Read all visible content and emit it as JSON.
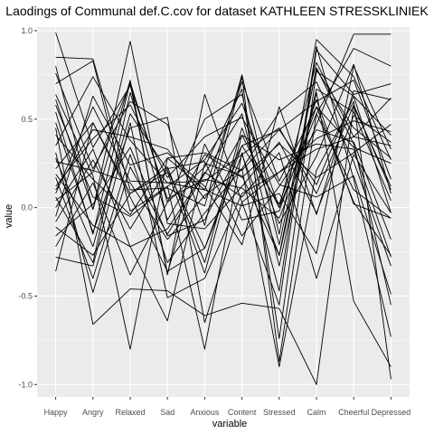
{
  "chart_data": {
    "type": "line",
    "title": "Laodings of Communal def.C.cov for dataset KATHLEEN STRESSKLINIEK",
    "xlabel": "variable",
    "ylabel": "value",
    "categories": [
      "Happy",
      "Angry",
      "Relaxed",
      "Sad",
      "Anxious",
      "Content",
      "Stressed",
      "Calm",
      "Cheerful",
      "Depressed"
    ],
    "ylim": [
      -1.07,
      1.02
    ],
    "yticks": [
      -1.0,
      -0.5,
      0.0,
      0.5,
      1.0
    ],
    "ytick_labels": [
      "-1.0",
      "-0.5",
      "0.0",
      "0.5",
      "1.0"
    ],
    "grid": true,
    "panel_background": "#ebebeb",
    "grid_color": "#ffffff",
    "line_color": "#000000",
    "series": [
      {
        "values": [
          0.99,
          0.34,
          0.69,
          0.05,
          0.16,
          0.11,
          -0.06,
          0.47,
          0.98,
          0.98
        ]
      },
      {
        "values": [
          0.85,
          0.84,
          0.1,
          0.11,
          0.01,
          0.75,
          -0.15,
          0.95,
          0.74,
          0.27
        ]
      },
      {
        "values": [
          0.8,
          -0.01,
          0.72,
          -0.38,
          0.64,
          0.03,
          -0.55,
          0.89,
          0.64,
          0.7
        ]
      },
      {
        "values": [
          0.76,
          0.22,
          0.6,
          0.47,
          -0.1,
          0.74,
          -0.87,
          0.53,
          0.9,
          0.8
        ]
      },
      {
        "values": [
          0.7,
          0.83,
          -0.02,
          0.12,
          0.27,
          0.59,
          0.0,
          0.82,
          0.4,
          0.35
        ]
      },
      {
        "values": [
          0.61,
          -0.01,
          0.94,
          -0.09,
          -0.12,
          0.12,
          0.37,
          -0.03,
          0.52,
          0.37
        ]
      },
      {
        "values": [
          0.54,
          -0.15,
          0.71,
          0.03,
          0.5,
          0.64,
          -0.21,
          0.78,
          0.45,
          0.28
        ]
      },
      {
        "values": [
          0.48,
          -0.14,
          0.45,
          0.51,
          -0.65,
          0.03,
          0.2,
          0.33,
          0.4,
          0.62
        ]
      },
      {
        "values": [
          0.41,
          0.16,
          -0.04,
          0.28,
          0.31,
          0.21,
          0.44,
          0.13,
          0.63,
          0.41
        ]
      },
      {
        "values": [
          0.35,
          0.74,
          0.38,
          0.14,
          0.1,
          0.71,
          0.15,
          0.57,
          0.34,
          0.25
        ]
      },
      {
        "values": [
          0.28,
          -0.22,
          0.53,
          0.21,
          -0.23,
          0.35,
          0.02,
          0.61,
          0.02,
          -0.06
        ]
      },
      {
        "values": [
          0.22,
          0.48,
          0.08,
          0.23,
          -0.31,
          0.45,
          -0.09,
          0.29,
          0.81,
          0.08
        ]
      },
      {
        "values": [
          0.17,
          -0.4,
          0.3,
          -0.31,
          -0.03,
          0.22,
          0.54,
          0.71,
          0.26,
          -0.33
        ]
      },
      {
        "values": [
          0.12,
          0.39,
          0.58,
          0.17,
          0.4,
          0.51,
          0.13,
          0.06,
          0.18,
          -0.49
        ]
      },
      {
        "values": [
          0.08,
          0.57,
          0.15,
          0.14,
          0.15,
          0.3,
          -0.27,
          0.67,
          0.54,
          0.04
        ]
      },
      {
        "values": [
          0.04,
          0.2,
          0.7,
          -0.37,
          0.36,
          -0.07,
          -0.02,
          0.57,
          0.03,
          -0.27
        ]
      },
      {
        "values": [
          0.0,
          0.33,
          -0.22,
          -0.12,
          0.2,
          0.06,
          0.31,
          -0.4,
          0.3,
          -0.03
        ]
      },
      {
        "values": [
          -0.05,
          0.63,
          0.24,
          0.31,
          0.12,
          -0.21,
          0.57,
          -0.04,
          0.66,
          0.61
        ]
      },
      {
        "values": [
          -0.11,
          -0.27,
          0.08,
          0.2,
          -0.37,
          0.41,
          0.0,
          0.53,
          0.1,
          -0.06
        ]
      },
      {
        "values": [
          -0.16,
          0.02,
          0.34,
          -0.16,
          -0.07,
          0.35,
          0.44,
          0.6,
          0.72,
          0.16
        ]
      },
      {
        "values": [
          -0.22,
          0.14,
          -0.38,
          0.03,
          0.23,
          0.67,
          -0.74,
          0.77,
          0.63,
          -0.03
        ]
      },
      {
        "values": [
          -0.28,
          -0.33,
          0.48,
          -0.51,
          -0.4,
          0.08,
          0.2,
          0.39,
          0.49,
          0.43
        ]
      },
      {
        "values": [
          -0.36,
          0.48,
          0.06,
          -0.36,
          -0.23,
          0.3,
          0.45,
          0.08,
          0.58,
          0.1
        ]
      },
      {
        "values": [
          0.64,
          0.18,
          -0.8,
          0.28,
          0.1,
          0.01,
          0.08,
          -0.26,
          0.8,
          0.33
        ]
      },
      {
        "values": [
          0.58,
          0.06,
          -0.05,
          0.12,
          -0.8,
          0.31,
          -0.47,
          0.91,
          0.16,
          -0.73
        ]
      },
      {
        "values": [
          0.45,
          -0.66,
          -0.46,
          -0.47,
          -0.61,
          -0.54,
          -0.57,
          -1.0,
          0.57,
          0.12
        ]
      },
      {
        "values": [
          0.31,
          -0.48,
          0.23,
          -0.15,
          0.19,
          0.53,
          -0.33,
          0.65,
          -0.53,
          -0.9
        ]
      },
      {
        "values": [
          0.26,
          0.21,
          0.14,
          -0.18,
          0.07,
          0.22,
          -0.9,
          0.21,
          0.6,
          -0.97
        ]
      },
      {
        "values": [
          0.19,
          -0.1,
          -0.22,
          -0.64,
          0.25,
          0.18,
          -0.27,
          0.79,
          0.36,
          -0.55
        ]
      },
      {
        "values": [
          0.1,
          0.44,
          0.4,
          0.33,
          0.05,
          0.41,
          0.27,
          0.36,
          0.33,
          -0.28
        ]
      },
      {
        "values": [
          0.06,
          -0.31,
          0.65,
          -0.07,
          0.3,
          0.17,
          0.36,
          0.17,
          0.31,
          0.47
        ]
      },
      {
        "values": [
          -0.08,
          0.27,
          -0.12,
          0.22,
          0.26,
          -0.16,
          0.12,
          0.44,
          0.37,
          -0.18
        ]
      }
    ]
  }
}
